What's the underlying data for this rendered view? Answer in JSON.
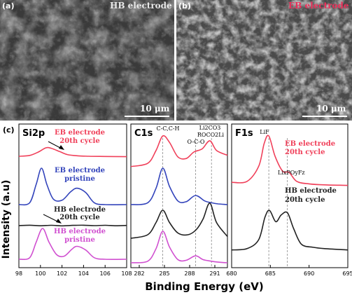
{
  "panels": {
    "a": {
      "letter": "(a)",
      "title": "HB electrode",
      "scale": "10 μm"
    },
    "b": {
      "letter": "(b)",
      "title": "EB electrode",
      "scale": "10 μm",
      "title_color": "#e8305a"
    }
  },
  "xps": {
    "letter": "(c)",
    "ylabel": "Intensity (a.u)",
    "xlabel": "Binding Energy (eV)",
    "colors": {
      "red": "#f0405a",
      "blue": "#3344bb",
      "black": "#222222",
      "magenta": "#d050d0"
    }
  },
  "chart_data": [
    {
      "type": "line",
      "panel": "Si2p",
      "title": "Si2p",
      "x_ticks": [
        "98",
        "100",
        "102",
        "104",
        "106",
        "108"
      ],
      "xlim": [
        98,
        108
      ],
      "series": [
        {
          "name": "EB electrode 20th cycle",
          "color": "#f0405a",
          "x": [
            98,
            99,
            99.8,
            100.5,
            101,
            101.8,
            102.5,
            103.5,
            104.5,
            106,
            108
          ],
          "y": [
            0.3,
            0.34,
            0.5,
            0.7,
            0.68,
            0.52,
            0.38,
            0.32,
            0.3,
            0.29,
            0.28
          ]
        },
        {
          "name": "EB electrode pristine",
          "color": "#3344bb",
          "x": [
            98,
            99,
            99.6,
            100.1,
            100.6,
            101.2,
            102,
            102.8,
            103.4,
            104.2,
            105,
            106,
            108
          ],
          "y": [
            0.0,
            0.05,
            0.55,
            1.0,
            0.55,
            0.15,
            0.12,
            0.35,
            0.45,
            0.33,
            0.05,
            0.0,
            0.0
          ]
        },
        {
          "name": "HB electrode 20th cycle",
          "color": "#222222",
          "x": [
            98,
            99,
            100,
            101,
            102,
            103,
            104,
            105,
            106,
            107,
            108
          ],
          "y": [
            0.0,
            0.06,
            -0.02,
            0.05,
            -0.03,
            0.04,
            0.06,
            0.0,
            0.05,
            -0.02,
            0.03
          ]
        },
        {
          "name": "HB electrode pristine",
          "color": "#d050d0",
          "x": [
            98,
            99,
            99.6,
            100.2,
            100.8,
            101.5,
            102.2,
            102.9,
            103.4,
            104.2,
            105,
            106,
            108
          ],
          "y": [
            0.0,
            0.05,
            0.55,
            1.0,
            0.55,
            0.15,
            0.1,
            0.32,
            0.42,
            0.3,
            0.05,
            0.0,
            0.0
          ]
        }
      ],
      "annotations": [
        "EB electrode",
        "20th cycle",
        "EB electrode",
        "pristine",
        "HB electrode",
        "20th cycle",
        "HB electrode",
        "pristine"
      ]
    },
    {
      "type": "line",
      "panel": "C1s",
      "title": "C1s",
      "x_ticks": [
        "282",
        "285",
        "288",
        "291"
      ],
      "xlim": [
        281,
        292.5
      ],
      "reference_lines": [
        284.8,
        288.7,
        290.6
      ],
      "series": [
        {
          "name": "EB 20th cycle",
          "color": "#f0405a",
          "x": [
            281,
            283,
            284,
            284.8,
            285.6,
            286.6,
            287.6,
            288.5,
            289.5,
            290.4,
            291.2,
            292.5
          ],
          "y": [
            0.05,
            0.15,
            0.55,
            1.0,
            0.8,
            0.35,
            0.3,
            0.5,
            0.6,
            0.85,
            0.55,
            0.4
          ]
        },
        {
          "name": "EB pristine",
          "color": "#3344bb",
          "x": [
            281,
            283,
            284,
            284.8,
            285.6,
            286.6,
            287.6,
            288.7,
            289.8,
            290.6,
            291.4,
            292.5
          ],
          "y": [
            0.0,
            0.05,
            0.45,
            1.0,
            0.5,
            0.1,
            0.08,
            0.25,
            0.1,
            0.05,
            0.02,
            0.0
          ]
        },
        {
          "name": "HB 20th cycle",
          "color": "#222222",
          "x": [
            281,
            283,
            284,
            284.8,
            285.6,
            286.6,
            287.8,
            288.8,
            289.6,
            290.4,
            291.2,
            292.5
          ],
          "y": [
            0.0,
            0.1,
            0.45,
            0.8,
            0.45,
            0.15,
            0.1,
            0.25,
            0.55,
            1.0,
            0.45,
            0.05
          ]
        },
        {
          "name": "HB pristine",
          "color": "#d050d0",
          "x": [
            281,
            283,
            284,
            284.8,
            285.6,
            286.6,
            287.6,
            288.7,
            289.6,
            290.6,
            291.4,
            292.5
          ],
          "y": [
            0.0,
            0.05,
            0.45,
            1.0,
            0.5,
            0.1,
            0.08,
            0.22,
            0.1,
            0.05,
            0.02,
            0.0
          ]
        }
      ],
      "annotations": [
        "C-C,C-H",
        "Li2CO3",
        "ROCO2Li",
        "O-C-O"
      ]
    },
    {
      "type": "line",
      "panel": "F1s",
      "title": "F1s",
      "x_ticks": [
        "680",
        "685",
        "690",
        "695"
      ],
      "xlim": [
        680,
        695
      ],
      "reference_lines": [
        684.8,
        687.2
      ],
      "series": [
        {
          "name": "EB electrode 20th cycle",
          "color": "#f0405a",
          "x": [
            680,
            682,
            683.5,
            684.2,
            684.8,
            685.6,
            686.6,
            687.4,
            688.4,
            690,
            692,
            695
          ],
          "y": [
            0.08,
            0.1,
            0.4,
            0.85,
            1.0,
            0.6,
            0.3,
            0.28,
            0.1,
            0.05,
            0.03,
            0.02
          ]
        },
        {
          "name": "HB electrode 20th cycle",
          "color": "#222222",
          "x": [
            680,
            682,
            683.5,
            684.3,
            684.9,
            685.7,
            686.4,
            687.2,
            688,
            689,
            690.5,
            692,
            695
          ],
          "y": [
            0.02,
            0.05,
            0.25,
            0.75,
            0.9,
            0.65,
            0.8,
            0.85,
            0.5,
            0.15,
            0.08,
            0.05,
            0.02
          ]
        }
      ],
      "annotations": [
        "LiF",
        "LixPOyFz",
        "EB electrode",
        "20th cycle",
        "HB electrode",
        "20th cycle"
      ]
    }
  ]
}
